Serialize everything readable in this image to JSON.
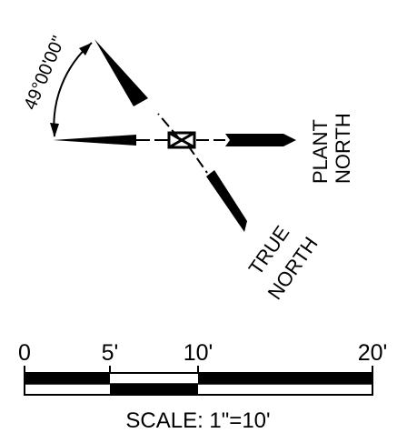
{
  "north_arrow": {
    "angle_label": "49°00'00\"",
    "plant_north_line1": "PLANT",
    "plant_north_line2": "NORTH",
    "true_north_line1": "TRUE",
    "true_north_line2": "NORTH"
  },
  "scale_bar": {
    "tick_labels": [
      "0",
      "5'",
      "10'",
      "20'"
    ],
    "caption": "SCALE: 1\"=10'"
  },
  "colors": {
    "ink": "#000000",
    "paper": "#ffffff"
  }
}
